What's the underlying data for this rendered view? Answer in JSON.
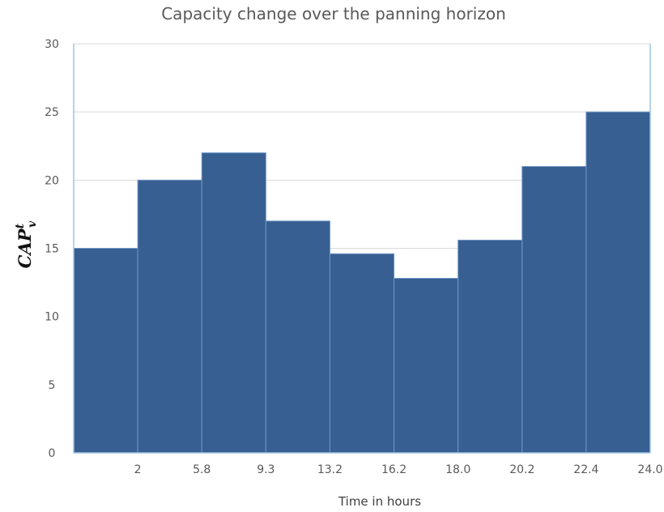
{
  "chart_data": {
    "type": "bar",
    "title": "Capacity change over the panning horizon",
    "xlabel": "Time in hours",
    "ylabel": {
      "base": "CAP",
      "superscript": "t",
      "subscript": "v"
    },
    "ylim": [
      0,
      30
    ],
    "yticks": [
      "0",
      "5",
      "10",
      "15",
      "20",
      "25",
      "30"
    ],
    "x_tick_labels": [
      "2",
      "5.8",
      "9.3",
      "13.2",
      "16.2",
      "18.0",
      "20.2",
      "22.4",
      "24.0"
    ],
    "values": [
      15,
      20,
      22,
      17,
      14.6,
      12.8,
      15.6,
      21,
      25
    ],
    "grid": true,
    "legend": "none",
    "colors": {
      "bar": "#375f91",
      "bar_edge": "#6f97c6",
      "grid": "#d9d9d9",
      "axis_line": "#9dc3e6"
    }
  }
}
